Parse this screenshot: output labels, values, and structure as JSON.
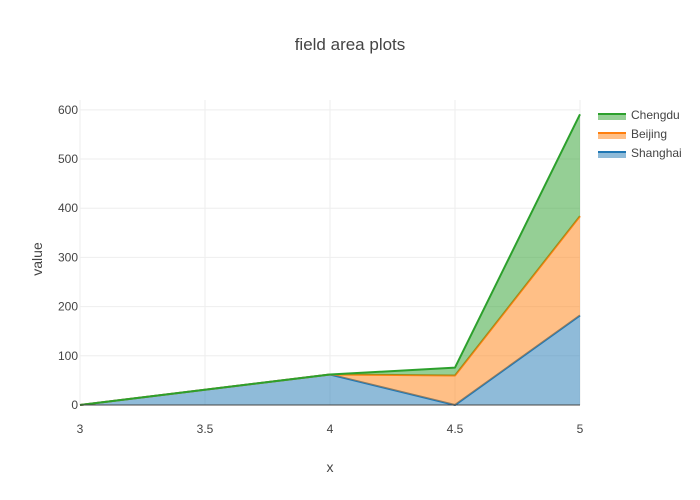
{
  "chart_data": {
    "type": "area",
    "stacked": true,
    "title": "field area plots",
    "xlabel": "x",
    "ylabel": "value",
    "x": [
      3,
      4,
      4.5,
      5
    ],
    "xlim": [
      3,
      5
    ],
    "ylim": [
      0,
      620
    ],
    "xticks": [
      "3",
      "3.5",
      "4",
      "4.5",
      "5"
    ],
    "yticks": [
      "0",
      "100",
      "200",
      "300",
      "400",
      "500",
      "600"
    ],
    "grid": true,
    "legend_position": "top-right",
    "series": [
      {
        "name": "Shanghai",
        "values": [
          0,
          62,
          0,
          182
        ],
        "color": "#1f77b4"
      },
      {
        "name": "Beijing",
        "values": [
          0,
          0,
          60,
          202
        ],
        "color": "#ff7f0e"
      },
      {
        "name": "Chengdu",
        "values": [
          0,
          0,
          16,
          207
        ],
        "color": "#2ca02c"
      }
    ]
  }
}
